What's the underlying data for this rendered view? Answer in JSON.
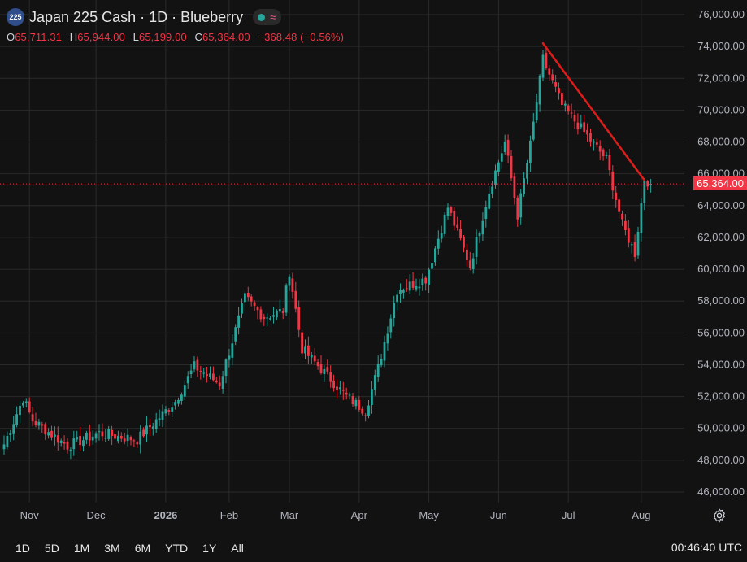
{
  "header": {
    "symbol_badge": "225",
    "title": "Japan 225 Cash · 1D · Blueberry",
    "ohlc": {
      "open_label": "O",
      "open": "65,711.31",
      "high_label": "H",
      "high": "65,944.00",
      "low_label": "L",
      "low": "65,199.00",
      "close_label": "C",
      "close": "65,364.00",
      "change": "−368.48 (−0.56%)"
    }
  },
  "colors": {
    "background": "#121212",
    "grid": "#2a2a2a",
    "up": "#26a69a",
    "down": "#f23645",
    "trendline": "#e01b1b",
    "price_tag": "#f23645"
  },
  "current_price_label": "65,364.00",
  "toolbar": {
    "ranges": [
      "1D",
      "5D",
      "1M",
      "3M",
      "6M",
      "YTD",
      "1Y",
      "All"
    ],
    "clock": "00:46:40 UTC",
    "settings_icon": "gear-icon"
  },
  "chart_data": {
    "type": "candlestick",
    "title": "Japan 225 Cash · 1D · Blueberry",
    "xlabel": "",
    "ylabel": "",
    "ylim": [
      45000,
      77000
    ],
    "grid": true,
    "y_ticks": [
      "46,000.00",
      "48,000.00",
      "50,000.00",
      "52,000.00",
      "54,000.00",
      "56,000.00",
      "58,000.00",
      "60,000.00",
      "62,000.00",
      "64,000.00",
      "66,000.00",
      "68,000.00",
      "70,000.00",
      "72,000.00",
      "74,000.00",
      "76,000.00"
    ],
    "y_tick_values": [
      46000,
      48000,
      50000,
      52000,
      54000,
      56000,
      58000,
      60000,
      62000,
      64000,
      66000,
      68000,
      70000,
      72000,
      74000,
      76000
    ],
    "x_ticks": [
      {
        "label": "Nov",
        "index": 8
      },
      {
        "label": "Dec",
        "index": 29
      },
      {
        "label": "2026",
        "index": 51
      },
      {
        "label": "Feb",
        "index": 71
      },
      {
        "label": "Mar",
        "index": 90
      },
      {
        "label": "Apr",
        "index": 112
      },
      {
        "label": "May",
        "index": 134
      },
      {
        "label": "Jun",
        "index": 156
      },
      {
        "label": "Jul",
        "index": 178
      },
      {
        "label": "Aug",
        "index": 201
      }
    ],
    "current_price": 65364,
    "trendline": [
      {
        "index": 170,
        "value": 74200
      },
      {
        "index": 202,
        "value": 65600
      }
    ],
    "anchors": [
      [
        0,
        49000
      ],
      [
        6,
        51900
      ],
      [
        9,
        50500
      ],
      [
        20,
        48900
      ],
      [
        30,
        49700
      ],
      [
        42,
        49300
      ],
      [
        54,
        51700
      ],
      [
        60,
        53900
      ],
      [
        68,
        52800
      ],
      [
        76,
        58200
      ],
      [
        82,
        57000
      ],
      [
        88,
        57400
      ],
      [
        90,
        59900
      ],
      [
        94,
        55000
      ],
      [
        102,
        53300
      ],
      [
        108,
        52000
      ],
      [
        114,
        51100
      ],
      [
        118,
        53800
      ],
      [
        124,
        58700
      ],
      [
        133,
        59400
      ],
      [
        140,
        63900
      ],
      [
        147,
        60200
      ],
      [
        153,
        64900
      ],
      [
        158,
        68000
      ],
      [
        162,
        63400
      ],
      [
        166,
        67800
      ],
      [
        170,
        73200
      ],
      [
        176,
        70300
      ],
      [
        183,
        68600
      ],
      [
        190,
        66900
      ],
      [
        195,
        62800
      ],
      [
        199,
        61000
      ],
      [
        202,
        65700
      ],
      [
        204,
        65364
      ]
    ]
  }
}
